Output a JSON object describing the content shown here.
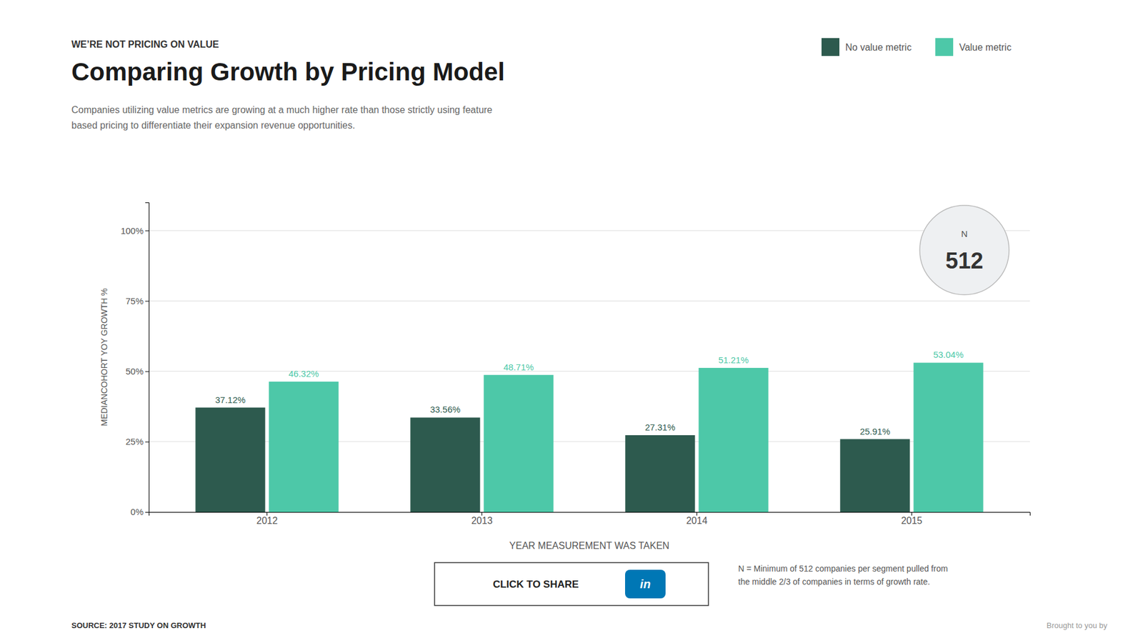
{
  "chart_data": {
    "type": "bar",
    "title": "Comparing Growth by Pricing Model",
    "subtitle": "Companies utilizing value metrics are growing at a much higher rate than those strictly using feature\nbased pricing to differentiate their expansion revenue opportunities.",
    "x_label": "YEAR MEASUREMENT WAS TAKEN",
    "y_label": "MEDIANCOHORT YOY GROWTH %",
    "categories": [
      "2012",
      "2013",
      "2014",
      "2015"
    ],
    "series": [
      {
        "name": "No value metric",
        "color": "#2d5a4e",
        "values": [
          37.12,
          33.56,
          27.31,
          25.91
        ],
        "value_labels": [
          "37.12%",
          "33.56%",
          "27.31%",
          "25.91%"
        ]
      },
      {
        "name": "Value metric",
        "color": "#4dc8a8",
        "values": [
          46.32,
          48.71,
          51.21,
          53.04
        ],
        "value_labels": [
          "46.32%",
          "48.71%",
          "51.21%",
          "53.04%"
        ]
      }
    ],
    "ylim": [
      0,
      110
    ],
    "yticks": [
      {
        "value": 0,
        "label": "0%"
      },
      {
        "value": 25,
        "label": "25%"
      },
      {
        "value": 50,
        "label": "50%"
      },
      {
        "value": 75,
        "label": "75%"
      },
      {
        "value": 100,
        "label": "100%"
      }
    ],
    "grid": true,
    "legend": "top-right",
    "data_labels": true,
    "annotations": [
      "WE’RE NOT PRICING ON VALUE",
      "N",
      "512",
      "N = Minimum of 512 companies per segment pulled from\nthe middle 2/3 of companies in terms of growth rate.",
      "SOURCE: 2017 STUDY ON GROWTH",
      "CLICK TO SHARE",
      "in",
      "Brought to you by"
    ]
  }
}
